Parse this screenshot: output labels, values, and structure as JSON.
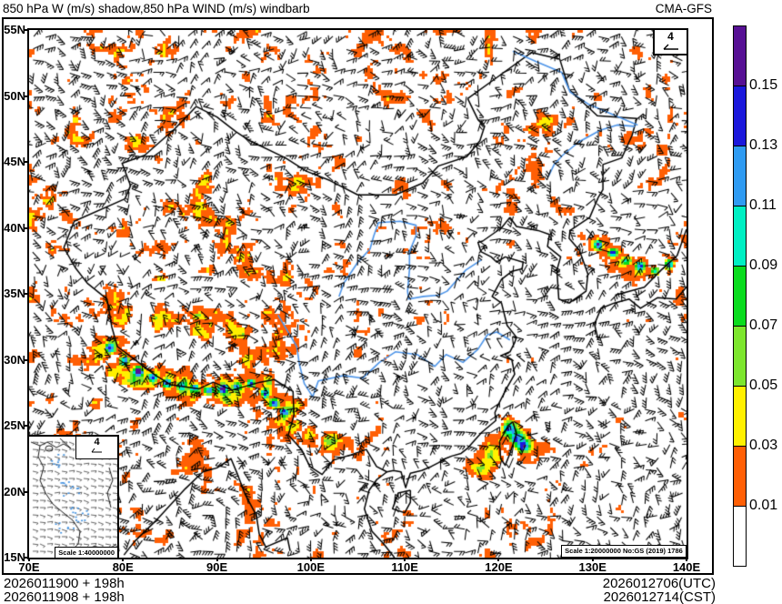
{
  "header": {
    "title": "850 hPa W (m/s) shadow,850 hPa WIND (m/s) windbarb",
    "model_label": "CMA-GFS"
  },
  "axes": {
    "x_labels": [
      "70E",
      "80E",
      "90E",
      "100E",
      "110E",
      "120E",
      "130E",
      "140E"
    ],
    "y_labels": [
      "55N",
      "50N",
      "45N",
      "40N",
      "35N",
      "30N",
      "25N",
      "20N",
      "15N"
    ]
  },
  "colorbar": {
    "tick_labels": [
      "0.15",
      "0.13",
      "0.11",
      "0.09",
      "0.07",
      "0.05",
      "0.03",
      "0.01"
    ],
    "segment_colors_top_to_bottom": [
      "#571094",
      "#1B18DC",
      "#2F9BF2",
      "#00EFC3",
      "#0ADC1E",
      "#7DE62E",
      "#FFF000",
      "#FF5F05",
      "#FFFFFF"
    ]
  },
  "map_overlays": {
    "barb_legend_value": "4",
    "inset_barb_legend_value": "4",
    "inset_scale_text": "Scale 1:40000000",
    "map_scale_text": "Scale 1:20000000 No:GS (2019) 1786"
  },
  "footer": {
    "init_utc": "2026011900 + 198h",
    "init_cst": "2026011908 + 198h",
    "valid_utc": "2026012706(UTC)",
    "valid_cst": "2026012714(CST)"
  },
  "chart_data": {
    "type": "heatmap",
    "title": "850 hPa W (m/s) shadow,850 hPa WIND (m/s) windbarb",
    "model": "CMA-GFS",
    "projection": "lat-lon",
    "x_axis": {
      "unit": "E",
      "range": [
        70,
        140
      ],
      "tick_interval": 10
    },
    "y_axis": {
      "unit": "N",
      "range": [
        15,
        55
      ],
      "tick_interval": 5
    },
    "shading": {
      "variable": "850 hPa vertical velocity W (m/s)",
      "levels": [
        0.01,
        0.03,
        0.05,
        0.07,
        0.09,
        0.11,
        0.13,
        0.15
      ],
      "palette": [
        "#FFFFFF",
        "#FF5F05",
        "#FFF000",
        "#7DE62E",
        "#0ADC1E",
        "#00EFC3",
        "#2F9BF2",
        "#1B18DC",
        "#571094"
      ],
      "high_value_regions": [
        {
          "name": "himalaya-south-slope-band",
          "approx_lon": [
            79,
            97
          ],
          "approx_lat": [
            26.5,
            30
          ],
          "max_bin": ">0.15"
        },
        {
          "name": "taiwan-strait-southeast-coast-blob",
          "approx_lon": [
            119,
            124
          ],
          "approx_lat": [
            22,
            26
          ],
          "max_bin": ">0.15"
        },
        {
          "name": "sea-of-japan-band",
          "approx_lon": [
            129,
            139
          ],
          "approx_lat": [
            35,
            40
          ],
          "max_bin": ">0.15"
        },
        {
          "name": "scattered-weak-updrafts",
          "approx_lon": [
            70,
            140
          ],
          "approx_lat": [
            15,
            55
          ],
          "max_bin": "0.01-0.05"
        }
      ]
    },
    "wind": {
      "variable": "850 hPa wind (m/s)",
      "symbol": "windbarb",
      "reference_barb_value": 4
    },
    "init_times": [
      "2026011900 + 198h",
      "2026011908 + 198h"
    ],
    "valid_times": [
      "2026012706(UTC)",
      "2026012714(CST)"
    ]
  }
}
